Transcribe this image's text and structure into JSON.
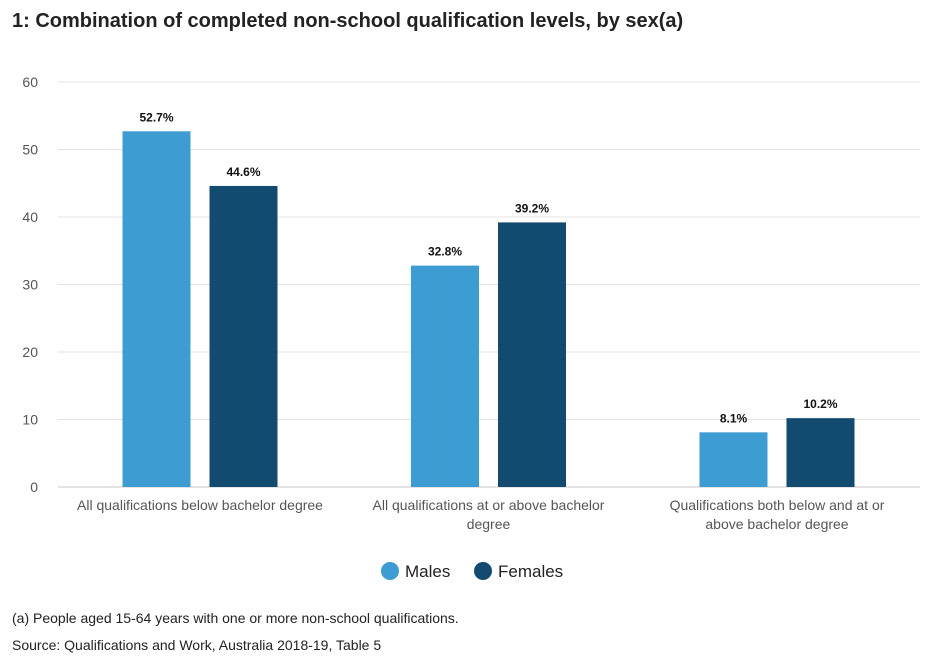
{
  "title": "1: Combination of completed non-school qualification levels, by sex(a)",
  "footnotes": {
    "note": "(a) People aged 15-64 years with one or more non-school qualifications.",
    "source": "Source: Qualifications and Work, Australia 2018-19, Table 5"
  },
  "chart_data": {
    "type": "bar",
    "title": "1: Combination of completed non-school qualification levels, by sex(a)",
    "xlabel": "",
    "ylabel": "",
    "ylim": [
      0,
      60
    ],
    "yticks": [
      0,
      10,
      20,
      30,
      40,
      50,
      60
    ],
    "grid": true,
    "legend_position": "bottom-center",
    "categories": [
      [
        "All qualifications below bachelor degree"
      ],
      [
        "All qualifications at or above bachelor",
        "degree"
      ],
      [
        "Qualifications both below and at or",
        "above bachelor degree"
      ]
    ],
    "series": [
      {
        "name": "Males",
        "color": "#3d9dd3",
        "values": [
          52.7,
          32.8,
          8.1
        ],
        "labels": [
          "52.7%",
          "32.8%",
          "8.1%"
        ]
      },
      {
        "name": "Females",
        "color": "#134a70",
        "values": [
          44.6,
          39.2,
          10.2
        ],
        "labels": [
          "44.6%",
          "39.2%",
          "10.2%"
        ]
      }
    ]
  }
}
